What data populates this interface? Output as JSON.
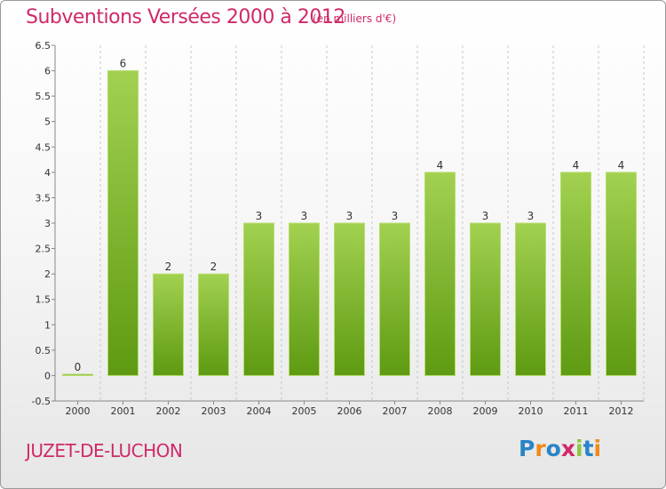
{
  "header": {
    "title": "Subventions Versées 2000 à 2012",
    "unit": "(en milliers d'€)"
  },
  "footer": {
    "commune": "JUZET-DE-LUCHON",
    "logo_letters": [
      "P",
      "r",
      "o",
      "x",
      "i",
      "t",
      "i"
    ]
  },
  "colors": {
    "title": "#d0296a",
    "bar_light": "#9ccc4c",
    "bar_dark": "#5e9a12",
    "logo": [
      "#2a84c7",
      "#f08a1a",
      "#2a84c7",
      "#d0296a",
      "#8dc63f",
      "#2a84c7",
      "#f08a1a"
    ]
  },
  "chart_data": {
    "type": "bar",
    "title": "Subventions Versées 2000 à 2012",
    "subtitle": "(en milliers d'€)",
    "categories": [
      "2000",
      "2001",
      "2002",
      "2003",
      "2004",
      "2005",
      "2006",
      "2007",
      "2008",
      "2009",
      "2010",
      "2011",
      "2012"
    ],
    "values": [
      0,
      6,
      2,
      2,
      3,
      3,
      3,
      3,
      4,
      3,
      3,
      4,
      4
    ],
    "data_labels": [
      "0",
      "6",
      "2",
      "2",
      "3",
      "3",
      "3",
      "3",
      "4",
      "3",
      "3",
      "4",
      "4"
    ],
    "ylim": [
      -0.5,
      6.5
    ],
    "yticks": [
      "-0.5",
      "0",
      "0.5",
      "1",
      "1.5",
      "2",
      "2.5",
      "3",
      "3.5",
      "4",
      "4.5",
      "5",
      "5.5",
      "6",
      "6.5"
    ],
    "ytick_values": [
      -0.5,
      0,
      0.5,
      1,
      1.5,
      2,
      2.5,
      3,
      3.5,
      4,
      4.5,
      5,
      5.5,
      6,
      6.5
    ],
    "grid": "x-dashed",
    "legend": "none"
  }
}
